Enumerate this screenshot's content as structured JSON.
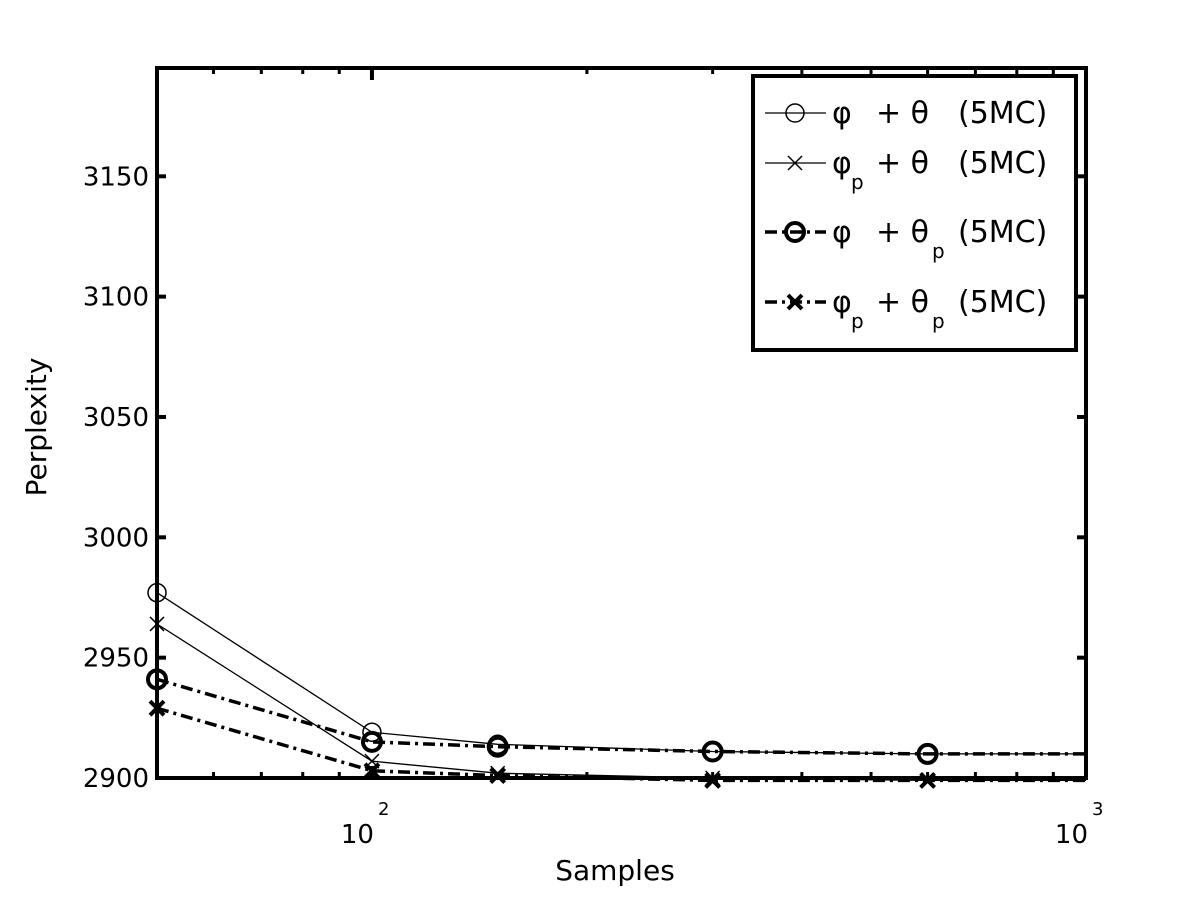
{
  "chart_data": {
    "type": "line",
    "xscale": "log",
    "xlabel": "Samples",
    "ylabel": "Perplexity",
    "xlim": [
      50,
      1000
    ],
    "ylim": [
      2900,
      3195
    ],
    "x_ticks": [
      {
        "value": 100,
        "base": "10",
        "exp": "2"
      },
      {
        "value": 1000,
        "base": "10",
        "exp": "3"
      }
    ],
    "y_ticks": [
      2900,
      2950,
      3000,
      3050,
      3100,
      3150
    ],
    "grid": false,
    "legend_position": "top-right",
    "series": [
      {
        "name": "φ + θ (5MC)",
        "symbol": "φ",
        "symbol_sub": "",
        "op": "+ θ",
        "op_sub": "",
        "tag": "(5MC)",
        "style": "solid",
        "marker": "circle",
        "bold": false,
        "x": [
          50,
          100,
          150,
          300,
          600,
          1000
        ],
        "y": [
          2977,
          2919,
          2914,
          2911,
          2910,
          2910
        ]
      },
      {
        "name": "φp + θ (5MC)",
        "symbol": "φ",
        "symbol_sub": "p",
        "op": "+ θ",
        "op_sub": "",
        "tag": "(5MC)",
        "style": "solid",
        "marker": "x",
        "bold": false,
        "x": [
          50,
          100,
          150,
          300,
          600,
          1000
        ],
        "y": [
          2964,
          2907,
          2902,
          2900,
          2899,
          2899
        ]
      },
      {
        "name": "φ + θp (5MC)",
        "symbol": "φ",
        "symbol_sub": "",
        "op": "+ θ",
        "op_sub": "p",
        "tag": "(5MC)",
        "style": "dashdot",
        "marker": "circle",
        "bold": true,
        "x": [
          50,
          100,
          150,
          300,
          600,
          1000
        ],
        "y": [
          2941,
          2915,
          2913,
          2911,
          2910,
          2910
        ]
      },
      {
        "name": "φp + θp (5MC)",
        "symbol": "φ",
        "symbol_sub": "p",
        "op": "+ θ",
        "op_sub": "p",
        "tag": "(5MC)",
        "style": "dashdot",
        "marker": "x",
        "bold": true,
        "x": [
          50,
          100,
          150,
          300,
          600,
          1000
        ],
        "y": [
          2929,
          2903,
          2901,
          2899,
          2899,
          2899
        ]
      }
    ]
  }
}
